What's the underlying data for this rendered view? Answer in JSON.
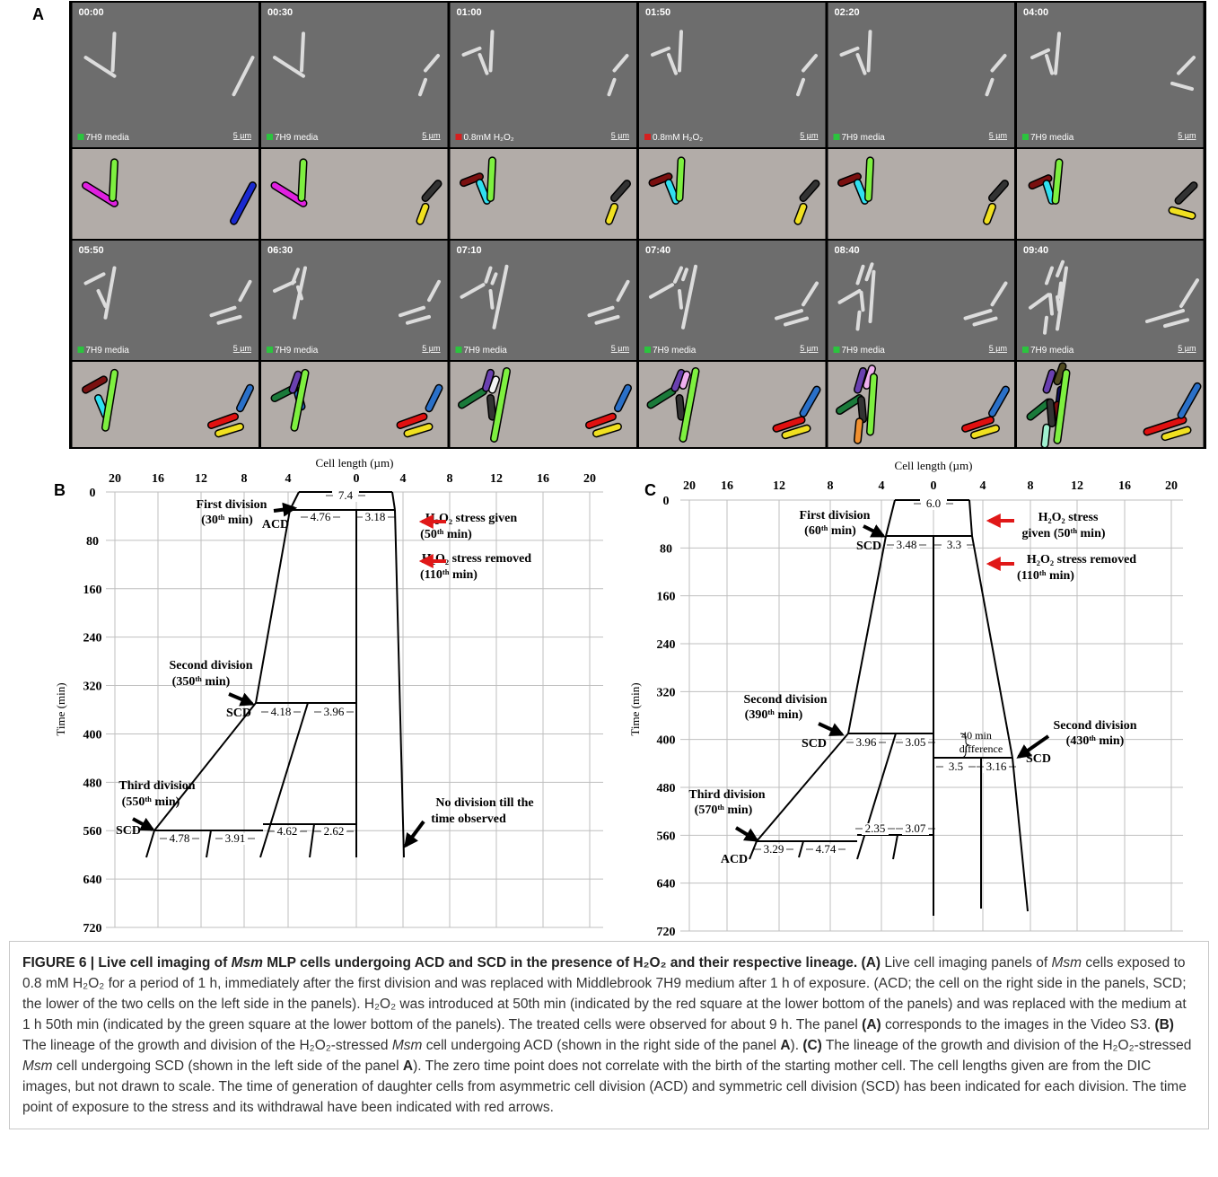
{
  "panel_a": {
    "label": "A",
    "scale_bar": "5 µm",
    "frames": [
      {
        "time": "00:00",
        "medium": "7H9 media",
        "color": "#2bc43e"
      },
      {
        "time": "00:30",
        "medium": "7H9 media",
        "color": "#2bc43e"
      },
      {
        "time": "01:00",
        "medium": "0.8mM H₂O₂",
        "color": "#d42020"
      },
      {
        "time": "01:50",
        "medium": "0.8mM H₂O₂",
        "color": "#d42020"
      },
      {
        "time": "02:20",
        "medium": "7H9 media",
        "color": "#2bc43e"
      },
      {
        "time": "04:00",
        "medium": "7H9 media",
        "color": "#2bc43e"
      },
      {
        "time": "05:50",
        "medium": "7H9 media",
        "color": "#2bc43e"
      },
      {
        "time": "06:30",
        "medium": "7H9 media",
        "color": "#2bc43e"
      },
      {
        "time": "07:10",
        "medium": "7H9 media",
        "color": "#2bc43e"
      },
      {
        "time": "07:40",
        "medium": "7H9 media",
        "color": "#2bc43e"
      },
      {
        "time": "08:40",
        "medium": "7H9 media",
        "color": "#2bc43e"
      },
      {
        "time": "09:40",
        "medium": "7H9 media",
        "color": "#2bc43e"
      }
    ]
  },
  "panel_b": {
    "label": "B",
    "x_title": "Cell length (µm)",
    "y_title": "Time (min)",
    "x_ticks": [
      20,
      16,
      12,
      8,
      4,
      0,
      4,
      8,
      12,
      16,
      20
    ],
    "y_ticks": [
      0,
      80,
      160,
      240,
      320,
      400,
      480,
      560,
      640,
      720
    ],
    "lengths": [
      "7.4",
      "4.76",
      "3.18",
      "4.18",
      "3.96",
      "4.78",
      "3.91",
      "4.62",
      "2.62"
    ],
    "notes": [
      "First division",
      "(30ᵗʰ min)",
      "ACD",
      "H₂O₂ stress given",
      "(50ᵗʰ min)",
      "H₂O₂ stress removed",
      "(110ᵗʰ min)",
      "Second division",
      "(350ᵗʰ  min)",
      "SCD",
      "Third division",
      "(550ᵗʰ  min)",
      "SCD",
      "No division till the",
      "time observed"
    ]
  },
  "panel_c": {
    "label": "C",
    "x_title": "Cell length (µm)",
    "y_title": "Time (min)",
    "x_ticks": [
      20,
      16,
      12,
      8,
      4,
      0,
      4,
      8,
      12,
      16,
      20
    ],
    "y_ticks": [
      0,
      80,
      160,
      240,
      320,
      400,
      480,
      560,
      640,
      720
    ],
    "lengths": [
      "6.0",
      "3.48",
      "3.3",
      "3.96",
      "3.05",
      "3.5",
      "3.16",
      "3.29",
      "4.74",
      "2.35",
      "3.07"
    ],
    "notes": [
      "First division",
      "(60ᵗʰ min)",
      "SCD",
      "H₂O₂ stress",
      "given (50ᵗʰ min)",
      "H₂O₂ stress removed",
      "(110ᵗʰ min)",
      "Second division",
      "(390ᵗʰ  min)",
      "SCD",
      "40 min",
      "difference",
      "Second division",
      "(430ᵗʰ  min)",
      "SCD",
      "Third division",
      "(570ᵗʰ  min)",
      "ACD"
    ]
  },
  "caption": [
    "FIGURE 6 | Live cell imaging of ",
    "Msm",
    " MLP cells undergoing ACD and SCD in the presence of H₂O₂ and their respective lineage. (A)",
    " Live cell imaging panels of ",
    "Msm",
    " cells exposed to 0.8 mM H₂O₂ for a period of 1 h, immediately after the first division and was replaced with Middlebrook 7H9 medium after 1 h of exposure. (ACD; the cell on the right side in the panels, SCD; the lower of the two cells on the left side in the panels). H₂O₂ was introduced at 50th min (indicated by the red square at the lower bottom of the panels) and was replaced with the medium at 1 h 50th min (indicated by the green square at the lower bottom of the panels). The treated cells were observed for about 9 h. The panel ",
    "(A)",
    " corresponds to the images in the Video S3. ",
    "(B)",
    " The lineage of the growth and division of the H₂O₂-stressed ",
    "Msm",
    " cell undergoing ACD (shown in the right side of the panel ",
    "A",
    "). ",
    "(C)",
    " The lineage of the growth and division of the H₂O₂-stressed ",
    "Msm",
    " cell undergoing SCD (shown in the left side of the panel ",
    "A",
    "). The zero time point does not correlate with the birth of the starting mother cell. The cell lengths given are from the DIC images, but not drawn to scale. The time of generation of daughter cells from asymmetric cell division (ACD) and symmetric cell division (SCD) has been indicated for each division. The time point of exposure to the stress and its withdrawal have been indicated with red arrows."
  ]
}
